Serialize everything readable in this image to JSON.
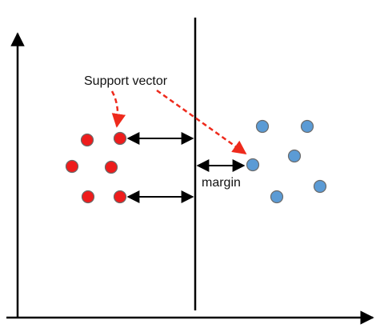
{
  "labels": {
    "support_vector": "Support vector",
    "margin": "margin"
  },
  "colors": {
    "red_class": "#ee1c1c",
    "blue_class": "#5b9bd5",
    "point_outline": "#6b6b6b",
    "arrow_dashed": "#ee2a1c",
    "axis": "#000000"
  },
  "points": {
    "red": [
      {
        "name": "red-point-top-left",
        "support_vector": false
      },
      {
        "name": "red-point-top-right",
        "support_vector": true
      },
      {
        "name": "red-point-middle-left",
        "support_vector": false
      },
      {
        "name": "red-point-middle-right",
        "support_vector": false
      },
      {
        "name": "red-point-bottom-left",
        "support_vector": false
      },
      {
        "name": "red-point-bottom-right",
        "support_vector": true
      }
    ],
    "blue": [
      {
        "name": "blue-point-top-left",
        "support_vector": false
      },
      {
        "name": "blue-point-top-right",
        "support_vector": false
      },
      {
        "name": "blue-point-support",
        "support_vector": true
      },
      {
        "name": "blue-point-middle-right",
        "support_vector": false
      },
      {
        "name": "blue-point-bottom-left",
        "support_vector": false
      },
      {
        "name": "blue-point-bottom-right",
        "support_vector": false
      }
    ]
  }
}
